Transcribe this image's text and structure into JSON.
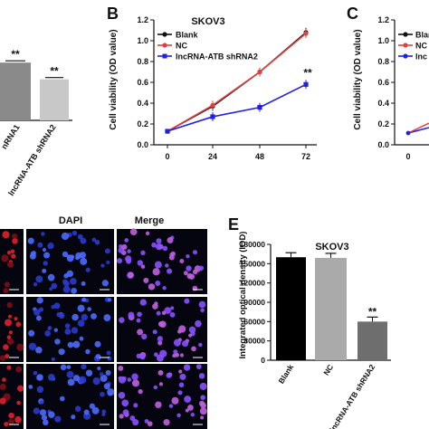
{
  "panel_labels": {
    "B": "B",
    "C": "C",
    "E": "E"
  },
  "micro": {
    "dapi": "DAPI",
    "merge": "Merge"
  },
  "chart_data": [
    {
      "id": "A-partial",
      "type": "bar",
      "categories": [
        "shRNA1",
        "lncRNA-ATB shRNA2"
      ],
      "tick_labels": [
        "nRNA1",
        "lncRNA-ATB shRNA2"
      ],
      "values": [
        0.69,
        0.49
      ],
      "ylim": [
        0,
        1.2
      ],
      "annotations": [
        "**",
        "**"
      ],
      "colors": [
        "#8a8a8a",
        "#c8c8c8"
      ]
    },
    {
      "id": "B",
      "type": "line",
      "title": "SKOV3",
      "xlabel": "",
      "ylabel": "Cell viability (OD value)",
      "x": [
        0,
        24,
        48,
        72
      ],
      "xticks": [
        "0",
        "24",
        "48",
        "72"
      ],
      "yticks": [
        "0.0",
        "0.2",
        "0.4",
        "0.6",
        "0.8",
        "1.0",
        "1.2"
      ],
      "ylim": [
        0,
        1.2
      ],
      "series": [
        {
          "name": "Blank",
          "color": "#111111",
          "values": [
            0.13,
            0.37,
            0.7,
            1.08
          ]
        },
        {
          "name": "NC",
          "color": "#e04040",
          "values": [
            0.13,
            0.38,
            0.7,
            1.07
          ]
        },
        {
          "name": "lncRNA-ATB shRNA2",
          "color": "#2020e0",
          "values": [
            0.13,
            0.27,
            0.36,
            0.58
          ]
        }
      ],
      "annotation": "**",
      "legend": "top-left"
    },
    {
      "id": "C-partial",
      "type": "line",
      "ylabel": "Cell viability (OD value)",
      "yticks": [
        "0.0",
        "0.2",
        "0.4",
        "0.6",
        "0.8",
        "1.0",
        "1.2"
      ],
      "xticks": [
        "0"
      ],
      "ylim": [
        0,
        1.2
      ],
      "legend_partial": [
        "Blan",
        "NC",
        "lnc"
      ]
    },
    {
      "id": "E",
      "type": "bar",
      "title": "SKOV3",
      "ylabel": "Integrated optical density (IOD)",
      "categories": [
        "Blank",
        "NC",
        "lncRNA-ATB shRNA2"
      ],
      "values": [
        160000,
        159000,
        60000
      ],
      "yticks": [
        "0",
        "30000",
        "60000",
        "90000",
        "120000",
        "150000",
        "180000"
      ],
      "ylim": [
        0,
        180000
      ],
      "annotation": "**",
      "colors": [
        "#000000",
        "#aaaaaa",
        "#6e6e6e"
      ]
    }
  ]
}
